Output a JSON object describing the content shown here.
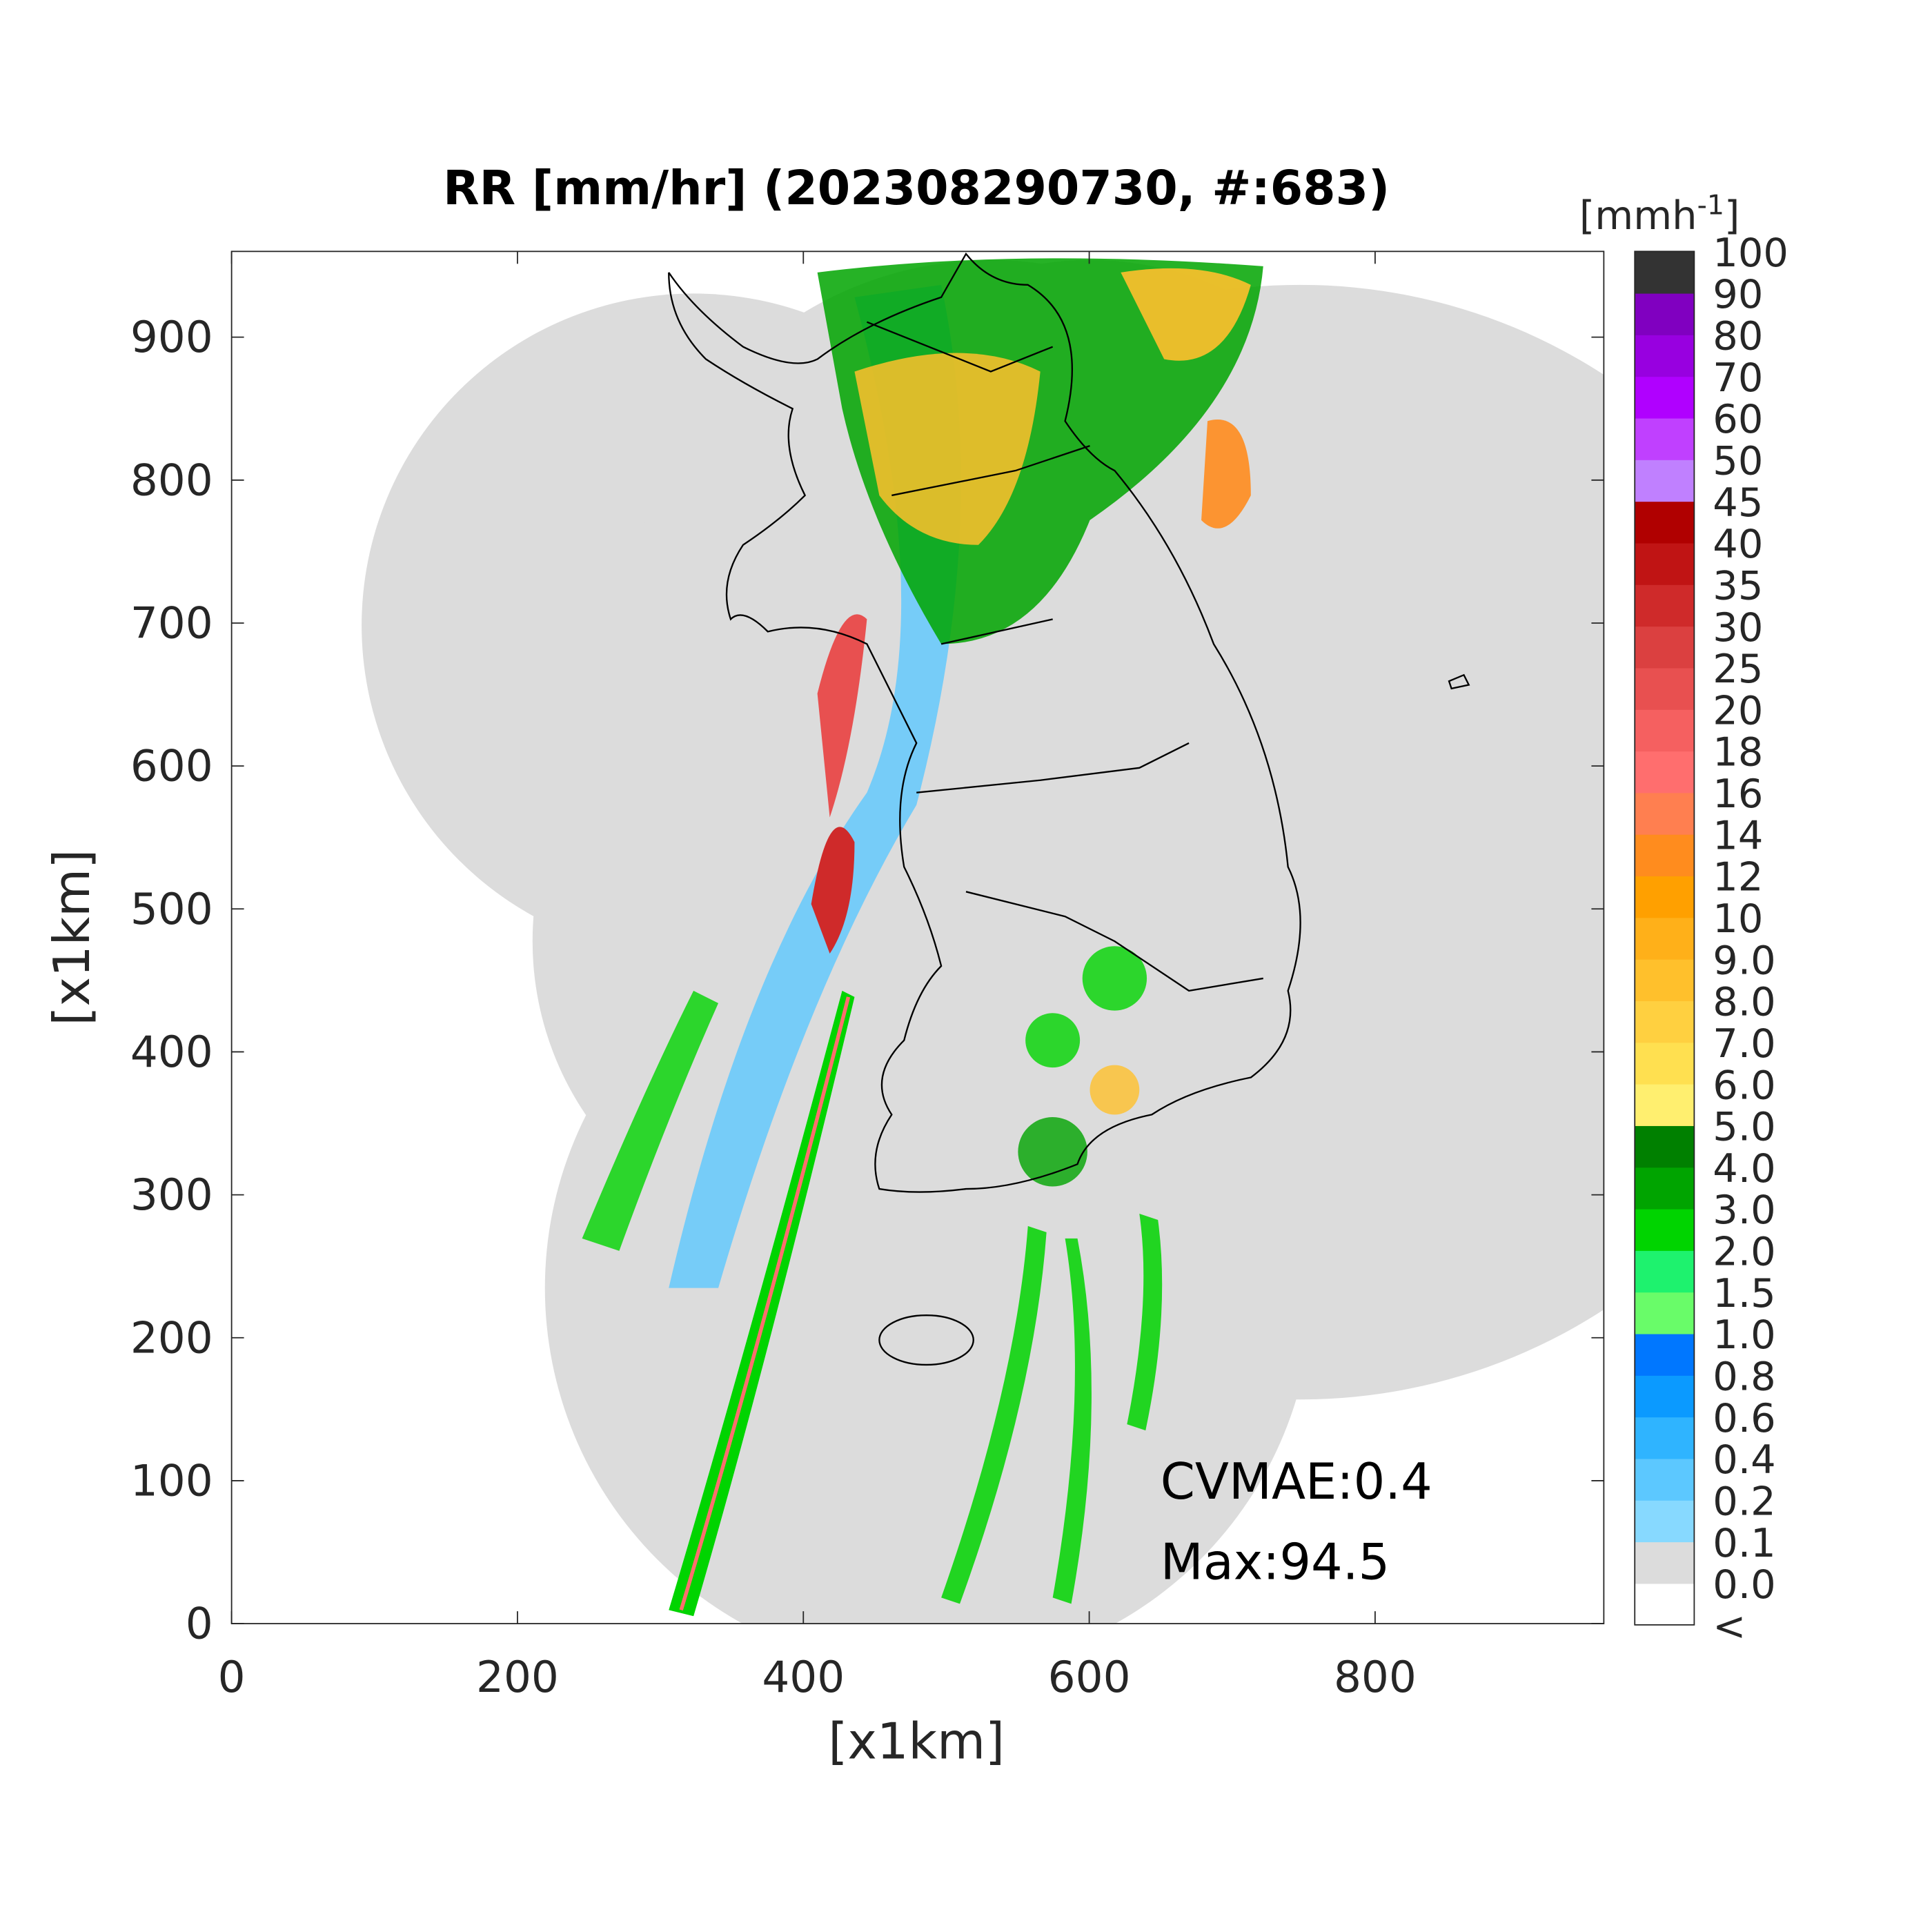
{
  "chart_data": {
    "type": "raster",
    "title": "RR [mm/hr] (202308290730, #:683)",
    "xlabel": "[x1km]",
    "ylabel": "[x1km]",
    "xlim": [
      0,
      960
    ],
    "ylim": [
      0,
      960
    ],
    "xticks": [
      0,
      200,
      400,
      600,
      800
    ],
    "yticks": [
      0,
      100,
      200,
      300,
      400,
      500,
      600,
      700,
      800,
      900
    ],
    "annotations": [
      "CVMAE:0.4",
      "Max:94.5"
    ],
    "colorbar": {
      "label": {
        "text": "[mmh",
        "superscript": "-1",
        "close": "]"
      },
      "ticks": [
        "<",
        "0.0",
        "0.1",
        "0.2",
        "0.4",
        "0.6",
        "0.8",
        "1.0",
        "1.5",
        "2.0",
        "3.0",
        "4.0",
        "5.0",
        "6.0",
        "7.0",
        "8.0",
        "9.0",
        "10",
        "12",
        "14",
        "16",
        "18",
        "20",
        "25",
        "30",
        "35",
        "40",
        "45",
        "50",
        "60",
        "70",
        "80",
        "90",
        "100"
      ],
      "colors": [
        "#ffffff",
        "#dcdcdc",
        "#87d9ff",
        "#5cc8ff",
        "#2fb4ff",
        "#0b9aff",
        "#0077ff",
        "#69fc69",
        "#1ef26e",
        "#00d400",
        "#00a400",
        "#008000",
        "#ffef6f",
        "#ffe050",
        "#ffd040",
        "#ffc02c",
        "#ffb019",
        "#ffa000",
        "#ff8c1e",
        "#ff7f50",
        "#ff6e6e",
        "#f56060",
        "#e85050",
        "#db4040",
        "#cf2a2a",
        "#c01414",
        "#b00000",
        "#c080ff",
        "#c040ff",
        "#b000ff",
        "#9800e0",
        "#8000c0",
        "#333333"
      ]
    }
  }
}
